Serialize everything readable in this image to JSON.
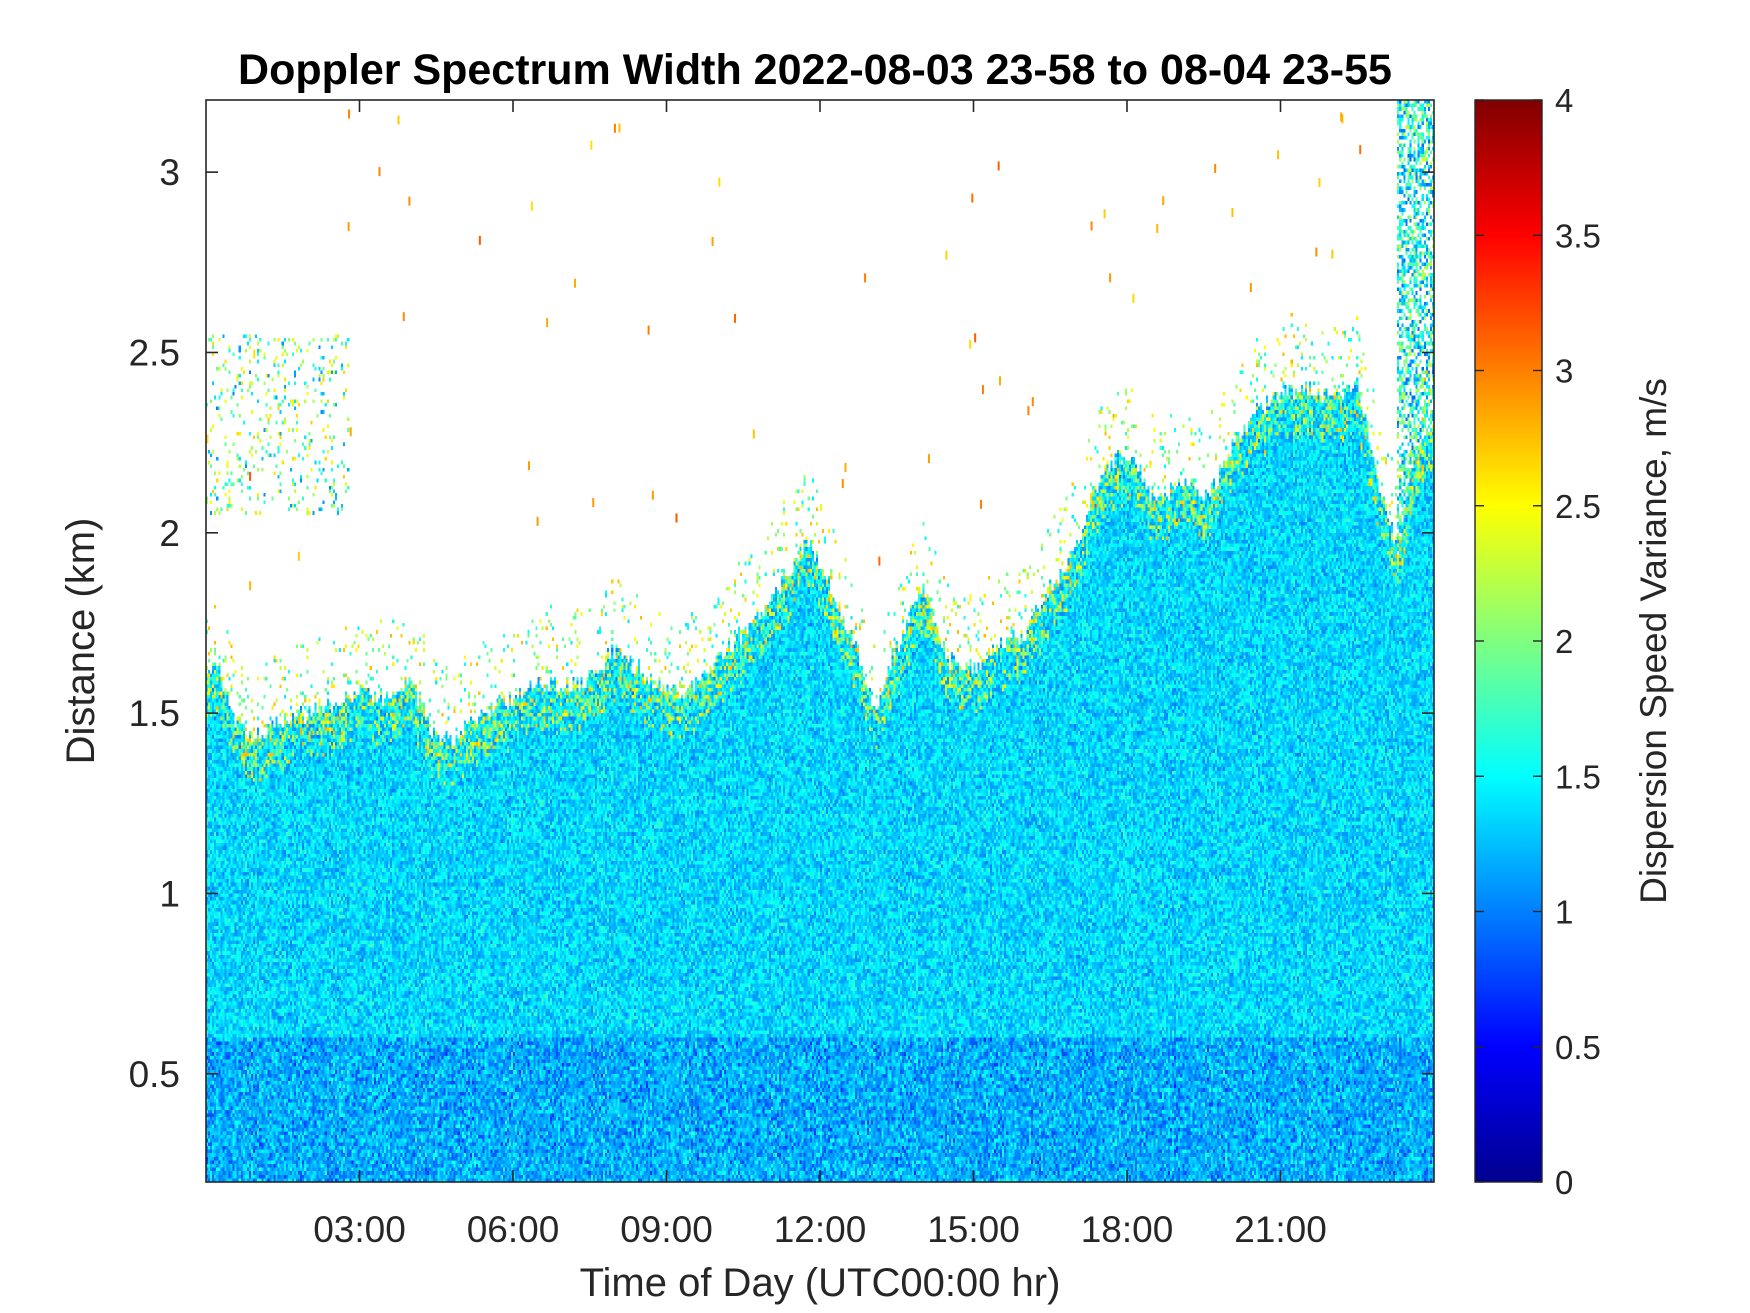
{
  "chart_data": {
    "type": "heatmap",
    "title": "Doppler Spectrum Width 2022-08-03 23-58 to 08-04 23-55",
    "xlabel": "Time of Day (UTC00:00 hr)",
    "ylabel": "Distance (km)",
    "xlim_hours": [
      0,
      24
    ],
    "ylim": [
      0.2,
      3.2
    ],
    "x_ticks": [
      "03:00",
      "06:00",
      "09:00",
      "12:00",
      "15:00",
      "18:00",
      "21:00"
    ],
    "x_tick_hours": [
      3,
      6,
      9,
      12,
      15,
      18,
      21
    ],
    "y_ticks": [
      "0.5",
      "1",
      "1.5",
      "2",
      "2.5",
      "3"
    ],
    "y_tick_values": [
      0.5,
      1,
      1.5,
      2,
      2.5,
      3
    ],
    "colorbar": {
      "label": "Dispersion Speed Variance, m/s",
      "colormap": "jet",
      "range": [
        0,
        4
      ],
      "ticks": [
        "0",
        "0.5",
        "1",
        "1.5",
        "2",
        "2.5",
        "3",
        "3.5",
        "4"
      ],
      "tick_values": [
        0,
        0.5,
        1,
        1.5,
        2,
        2.5,
        3,
        3.5,
        4
      ]
    },
    "dominant_value": 1.35,
    "signal_top_km": {
      "hours": [
        0,
        0.2,
        0.5,
        0.9,
        1.3,
        1.8,
        2.5,
        3.0,
        3.5,
        4.0,
        4.4,
        4.8,
        5.2,
        5.8,
        6.5,
        7.3,
        8.0,
        8.6,
        9.3,
        10.0,
        10.6,
        11.2,
        11.8,
        12.3,
        12.8,
        13.1,
        13.5,
        14.0,
        14.5,
        15.0,
        15.5,
        16.0,
        16.5,
        17.0,
        17.3,
        17.7,
        18.1,
        18.6,
        19.1,
        19.6,
        20.1,
        20.6,
        21.0,
        21.5,
        22.0,
        22.5,
        22.9,
        23.3,
        23.6,
        24.0
      ],
      "km": [
        1.6,
        1.65,
        1.5,
        1.42,
        1.47,
        1.49,
        1.53,
        1.56,
        1.53,
        1.6,
        1.45,
        1.43,
        1.48,
        1.53,
        1.58,
        1.58,
        1.68,
        1.6,
        1.55,
        1.65,
        1.73,
        1.85,
        1.98,
        1.82,
        1.65,
        1.5,
        1.68,
        1.85,
        1.65,
        1.62,
        1.68,
        1.72,
        1.85,
        1.95,
        2.1,
        2.2,
        2.22,
        2.08,
        2.15,
        2.1,
        2.25,
        2.35,
        2.38,
        2.4,
        2.38,
        2.42,
        2.15,
        1.95,
        2.2,
        2.3
      ]
    },
    "late_plume": {
      "hours": [
        23.3,
        24.0
      ],
      "top_km": 3.2
    },
    "noise_patch": {
      "hours": [
        0,
        2.8
      ],
      "km": [
        2.05,
        2.55
      ]
    },
    "grid": false,
    "legend": "none"
  }
}
